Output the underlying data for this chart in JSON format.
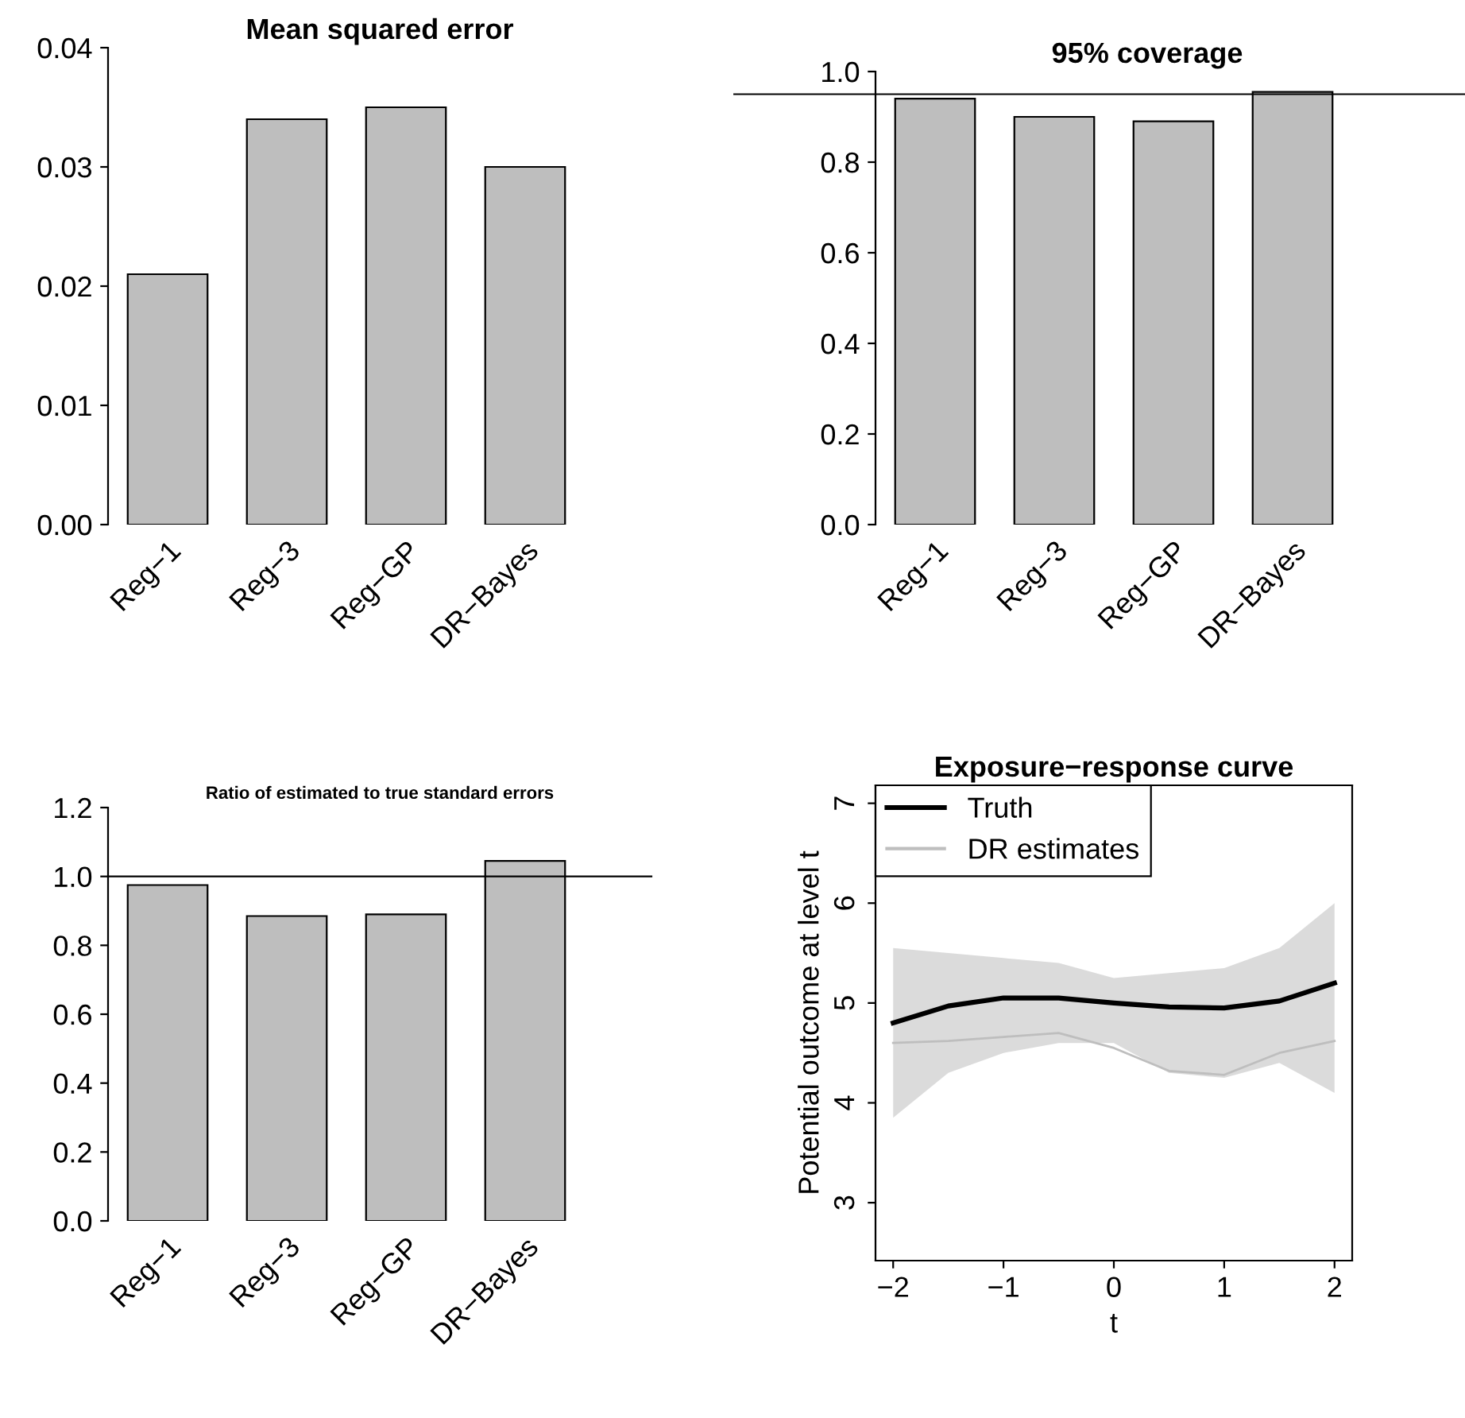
{
  "chart_data": [
    {
      "type": "bar",
      "title": "Mean squared error",
      "categories": [
        "Reg−1",
        "Reg−3",
        "Reg−GP",
        "DR−Bayes"
      ],
      "values": [
        0.021,
        0.034,
        0.035,
        0.03
      ],
      "color": "#bebebe",
      "ylim": [
        0,
        0.04
      ],
      "yticks": [
        {
          "value": 0,
          "label": "0.00"
        },
        {
          "value": 0.01,
          "label": "0.01"
        },
        {
          "value": 0.02,
          "label": "0.02"
        },
        {
          "value": 0.03,
          "label": "0.03"
        },
        {
          "value": 0.04,
          "label": "0.04"
        }
      ],
      "grid": false
    },
    {
      "type": "bar",
      "title": "95% coverage",
      "categories": [
        "Reg−1",
        "Reg−3",
        "Reg−GP",
        "DR−Bayes"
      ],
      "values": [
        0.94,
        0.9,
        0.89,
        0.955
      ],
      "color": "#bebebe",
      "ylim": [
        0,
        1.0
      ],
      "yticks": [
        {
          "value": 0,
          "label": "0.0"
        },
        {
          "value": 0.2,
          "label": "0.2"
        },
        {
          "value": 0.4,
          "label": "0.4"
        },
        {
          "value": 0.6,
          "label": "0.6"
        },
        {
          "value": 0.8,
          "label": "0.8"
        },
        {
          "value": 1.0,
          "label": "1.0"
        }
      ],
      "ref_lines": [
        {
          "axis": "y",
          "value": 0.95,
          "color": "#000000"
        }
      ],
      "grid": false
    },
    {
      "type": "bar",
      "title": "Ratio of estimated to true standard errors",
      "categories": [
        "Reg−1",
        "Reg−3",
        "Reg−GP",
        "DR−Bayes"
      ],
      "values": [
        0.975,
        0.885,
        0.89,
        1.045
      ],
      "color": "#bebebe",
      "ylim": [
        0,
        1.2
      ],
      "yticks": [
        {
          "value": 0,
          "label": "0.0"
        },
        {
          "value": 0.2,
          "label": "0.2"
        },
        {
          "value": 0.4,
          "label": "0.4"
        },
        {
          "value": 0.6,
          "label": "0.6"
        },
        {
          "value": 0.8,
          "label": "0.8"
        },
        {
          "value": 1.0,
          "label": "1.0"
        },
        {
          "value": 1.2,
          "label": "1.2"
        }
      ],
      "ref_lines": [
        {
          "axis": "y",
          "value": 1.0,
          "color": "#000000"
        }
      ],
      "grid": false
    },
    {
      "type": "line",
      "title": "Exposure−response curve",
      "xlabel": "t",
      "ylabel": "Potential outcome at level t",
      "x": [
        -2,
        -1.5,
        -1,
        -0.5,
        0,
        0.5,
        1,
        1.5,
        2
      ],
      "series": [
        {
          "name": "Truth",
          "color": "#000000",
          "values": [
            4.8,
            4.97,
            5.05,
            5.05,
            5.0,
            4.96,
            4.95,
            5.02,
            5.2
          ]
        },
        {
          "name": "DR estimates",
          "color": "#bebebe",
          "values": [
            4.6,
            4.62,
            4.66,
            4.7,
            4.55,
            4.32,
            4.28,
            4.5,
            4.62
          ],
          "lower": [
            3.85,
            4.3,
            4.5,
            4.6,
            4.6,
            4.3,
            4.25,
            4.4,
            4.1
          ],
          "upper": [
            5.55,
            5.5,
            5.45,
            5.4,
            5.25,
            5.3,
            5.35,
            5.55,
            6.0
          ]
        }
      ],
      "xlim": [
        -2.16,
        2.16
      ],
      "ylim": [
        2.42,
        7.18
      ],
      "xticks": [
        {
          "value": -2,
          "label": "−2"
        },
        {
          "value": -1,
          "label": "−1"
        },
        0,
        1,
        2
      ],
      "yticks": [
        3,
        4,
        5,
        6,
        7
      ],
      "grid": false,
      "legend": "top left",
      "line_style": "solid",
      "marker": "none"
    }
  ]
}
